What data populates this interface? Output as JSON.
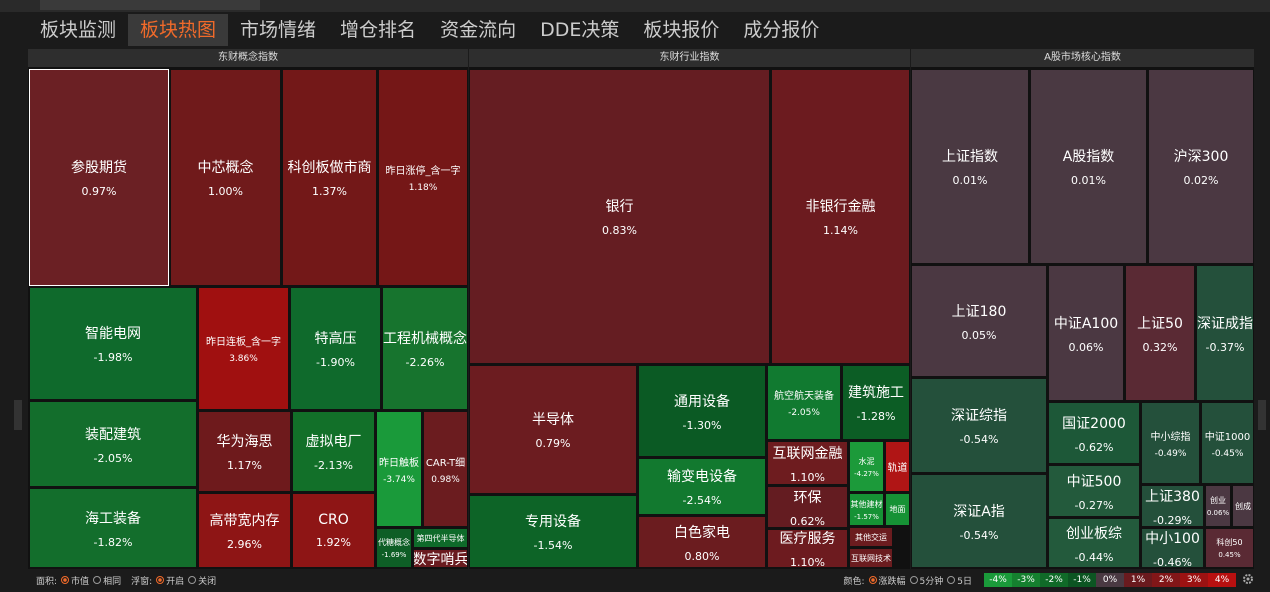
{
  "tabs": [
    "板块监测",
    "板块热图",
    "市场情绪",
    "增仓排名",
    "资金流向",
    "DDE决策",
    "板块报价",
    "成分报价"
  ],
  "active_tab": 1,
  "panels": [
    {
      "title": "东财概念指数",
      "tiles": [
        {
          "name": "参股期货",
          "change": "0.97%",
          "color": "#6b2024"
        },
        {
          "name": "中芯概念",
          "change": "1.00%",
          "color": "#701a1b"
        },
        {
          "name": "科创板做市商",
          "change": "1.37%",
          "color": "#731818"
        },
        {
          "name": "昨日涨停_含一字",
          "change": "1.18%",
          "color": "#751717"
        },
        {
          "name": "智能电网",
          "change": "-1.98%",
          "color": "#0f6a2c"
        },
        {
          "name": "昨日连板_含一字",
          "change": "3.86%",
          "color": "#a01010"
        },
        {
          "name": "特高压",
          "change": "-1.90%",
          "color": "#0f6a2c"
        },
        {
          "name": "工程机械概念",
          "change": "-2.26%",
          "color": "#17742e"
        },
        {
          "name": "装配建筑",
          "change": "-2.05%",
          "color": "#136e2c"
        },
        {
          "name": "海工装备",
          "change": "-1.82%",
          "color": "#136e2c"
        },
        {
          "name": "华为海思",
          "change": "1.17%",
          "color": "#6e1a1c"
        },
        {
          "name": "虚拟电厂",
          "change": "-2.13%",
          "color": "#127029"
        },
        {
          "name": "CRO",
          "change": "1.92%",
          "color": "#8e1515"
        },
        {
          "name": "高带宽内存",
          "change": "2.96%",
          "color": "#8e1515"
        },
        {
          "name": "昨日触板",
          "change": "-3.74%",
          "color": "#1a9a3a"
        },
        {
          "name": "CAR-T细",
          "change": "0.98%",
          "color": "#6b1c1f"
        },
        {
          "name": "代糖概念",
          "change": "-1.69%",
          "color": "#0e5e26"
        },
        {
          "name": "第四代半导体",
          "color": "#0e6a2a"
        },
        {
          "name": "数字哨兵",
          "color": "#6a1b1f"
        }
      ]
    },
    {
      "title": "东财行业指数",
      "tiles": [
        {
          "name": "银行",
          "change": "0.83%",
          "color": "#651d22"
        },
        {
          "name": "非银行金融",
          "change": "1.14%",
          "color": "#6c1b1f"
        },
        {
          "name": "半导体",
          "change": "0.79%",
          "color": "#6c1c20"
        },
        {
          "name": "通用设备",
          "change": "-1.30%",
          "color": "#0b5a24"
        },
        {
          "name": "输变电设备",
          "change": "-2.54%",
          "color": "#12792f"
        },
        {
          "name": "专用设备",
          "change": "-1.54%",
          "color": "#0d6427"
        },
        {
          "name": "白色家电",
          "change": "0.80%",
          "color": "#6b1c1f"
        },
        {
          "name": "航空航天装备",
          "change": "-2.05%",
          "color": "#117a30"
        },
        {
          "name": "建筑施工",
          "change": "-1.28%",
          "color": "#0c5d25"
        },
        {
          "name": "互联网金融",
          "change": "1.10%",
          "color": "#6e1c1f"
        },
        {
          "name": "环保",
          "change": "0.62%",
          "color": "#641c21"
        },
        {
          "name": "医疗服务",
          "change": "1.10%",
          "color": "#6d1b1f"
        },
        {
          "name": "水泥",
          "change": "-4.27%",
          "color": "#1c9a3a"
        },
        {
          "name": "轨道",
          "color": "#b01515"
        },
        {
          "name": "其他建材",
          "change": "-1.57%",
          "color": "#169235"
        },
        {
          "name": "地面",
          "color": "#169235"
        },
        {
          "name": "其他交运",
          "color": "#6b1c1f"
        },
        {
          "name": "互联网技术",
          "color": "#6b1c1f"
        }
      ]
    },
    {
      "title": "A股市场核心指数",
      "tiles": [
        {
          "name": "上证指数",
          "change": "0.01%",
          "color": "#4a3942"
        },
        {
          "name": "A股指数",
          "change": "0.01%",
          "color": "#4a3942"
        },
        {
          "name": "沪深300",
          "change": "0.02%",
          "color": "#4b3842"
        },
        {
          "name": "上证180",
          "change": "0.05%",
          "color": "#4b3842"
        },
        {
          "name": "中证A100",
          "change": "0.06%",
          "color": "#4b3842"
        },
        {
          "name": "上证50",
          "change": "0.32%",
          "color": "#5a2a34"
        },
        {
          "name": "深证成指",
          "change": "-0.37%",
          "color": "#24503b"
        },
        {
          "name": "深证综指",
          "change": "-0.54%",
          "color": "#24503b"
        },
        {
          "name": "深证A指",
          "change": "-0.54%",
          "color": "#24503b"
        },
        {
          "name": "国证2000",
          "change": "-0.62%",
          "color": "#1d5838"
        },
        {
          "name": "中证500",
          "change": "-0.27%",
          "color": "#235a3c"
        },
        {
          "name": "创业板综",
          "change": "-0.44%",
          "color": "#235a3c"
        },
        {
          "name": "中小综指",
          "change": "-0.49%",
          "color": "#24503b"
        },
        {
          "name": "中证1000",
          "change": "-0.45%",
          "color": "#24503b"
        },
        {
          "name": "上证380",
          "change": "-0.29%",
          "color": "#24503b"
        },
        {
          "name": "中小100",
          "change": "-0.46%",
          "color": "#24503b"
        },
        {
          "name": "创业",
          "change": "0.06%",
          "color": "#4b3842"
        },
        {
          "name": "创成",
          "color": "#4b3842"
        },
        {
          "name": "科创50",
          "change": "0.45%",
          "color": "#5a2a34"
        }
      ]
    }
  ],
  "footer": {
    "area_label": "面积:",
    "area_options": [
      "市值",
      "相同"
    ],
    "float_label": "浮窗:",
    "float_options": [
      "开启",
      "关闭"
    ],
    "color_label": "颜色:",
    "color_options": [
      "涨跌幅",
      "5分钟",
      "5日"
    ],
    "legend": [
      {
        "label": "-4%",
        "color": "#1a9a3a"
      },
      {
        "label": "-3%",
        "color": "#15802f"
      },
      {
        "label": "-2%",
        "color": "#106a28"
      },
      {
        "label": "-1%",
        "color": "#0c5522"
      },
      {
        "label": "0%",
        "color": "#4a3942"
      },
      {
        "label": "1%",
        "color": "#6a1a1e"
      },
      {
        "label": "2%",
        "color": "#821618"
      },
      {
        "label": "3%",
        "color": "#9c1212"
      },
      {
        "label": "4%",
        "color": "#b81010"
      }
    ]
  }
}
